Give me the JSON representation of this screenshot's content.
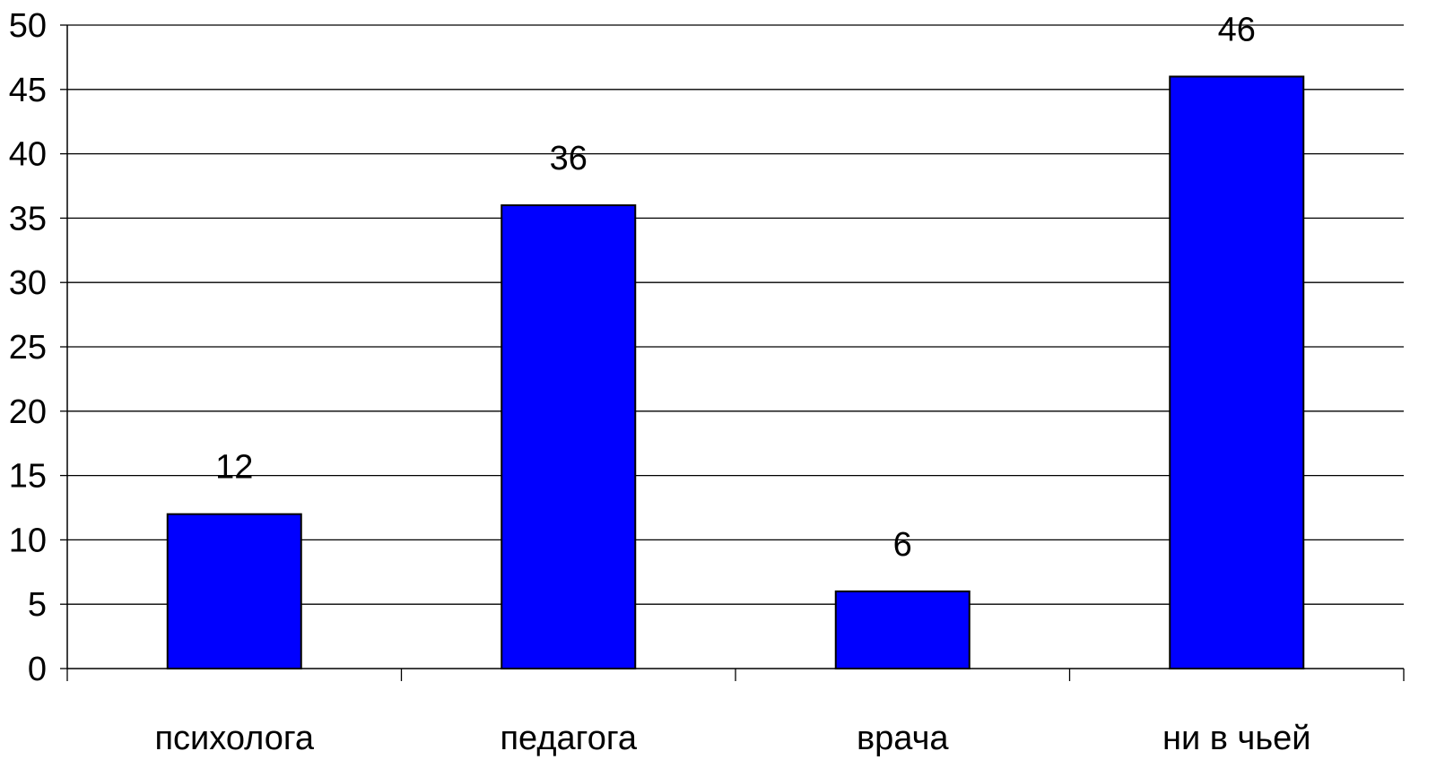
{
  "chart_data": {
    "type": "bar",
    "categories": [
      "психолога",
      "педагога",
      "врача",
      "ни в чьей"
    ],
    "values": [
      12,
      36,
      6,
      46
    ],
    "ylim": [
      0,
      50
    ],
    "yticks": [
      0,
      5,
      10,
      15,
      20,
      25,
      30,
      35,
      40,
      45,
      50
    ],
    "grid": true,
    "data_labels": true,
    "bar_color": "#0000ff",
    "bar_edge_color": "#000000",
    "grid_color": "#000000"
  }
}
